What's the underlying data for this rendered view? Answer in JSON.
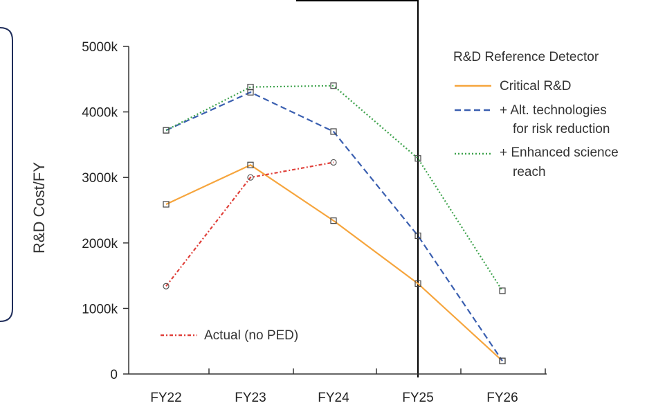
{
  "chart_data": {
    "type": "line",
    "ylabel": "R&D Cost/FY",
    "xlabel": "",
    "categories": [
      "FY22",
      "FY23",
      "FY24",
      "FY25",
      "FY26"
    ],
    "yticks": [
      "0",
      "1000k",
      "2000k",
      "3000k",
      "4000k",
      "5000k"
    ],
    "ylim": [
      0,
      5000
    ],
    "legend_title": "R&D Reference Detector",
    "series": [
      {
        "name": "Critical R&D",
        "color": "#f6a53d",
        "style": "solid",
        "marker": "square",
        "x": [
          "FY22",
          "FY23",
          "FY24",
          "FY25",
          "FY26"
        ],
        "values": [
          2590,
          3190,
          2340,
          1380,
          200
        ]
      },
      {
        "name": "+ Alt. technologies for risk reduction",
        "legend_lines": [
          "+ Alt. technologies",
          "for risk reduction"
        ],
        "color": "#3a5fb0",
        "style": "dashed",
        "marker": "square",
        "x": [
          "FY22",
          "FY23",
          "FY24",
          "FY25",
          "FY26"
        ],
        "values": [
          3720,
          4300,
          3700,
          2110,
          200
        ]
      },
      {
        "name": "+ Enhanced science reach",
        "legend_lines": [
          "+ Enhanced science",
          "reach"
        ],
        "color": "#3fa34d",
        "style": "dotted",
        "marker": "square",
        "x": [
          "FY22",
          "FY23",
          "FY24",
          "FY25",
          "FY26"
        ],
        "values": [
          3720,
          4380,
          4400,
          3290,
          1270
        ]
      },
      {
        "name": "Actual (no PED)",
        "color": "#e0403a",
        "style": "dashdot",
        "marker": "circle",
        "x": [
          "FY22",
          "FY23",
          "FY24"
        ],
        "values": [
          1340,
          3000,
          3230
        ]
      }
    ],
    "legend_placement": "top-right",
    "grid": false
  },
  "colors": {
    "frame_border": "#1f2d5a",
    "axis": "#333333",
    "divider": "#000000"
  }
}
